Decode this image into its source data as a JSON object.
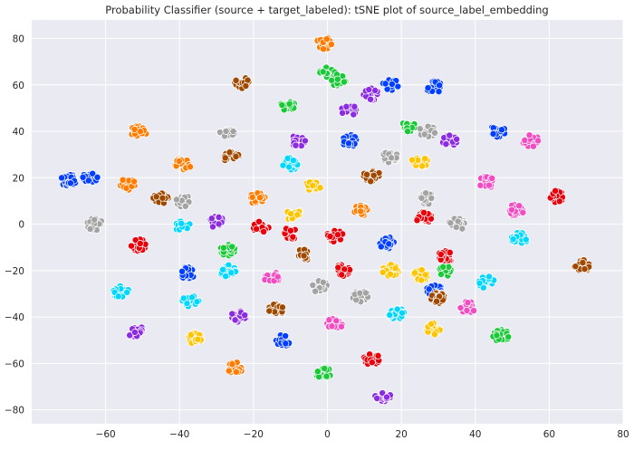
{
  "chart_data": {
    "type": "scatter",
    "title": "Probability Classifier (source + target_labeled): tSNE plot of source_label_embedding",
    "xlabel": "",
    "ylabel": "",
    "xlim": [
      -80,
      80
    ],
    "ylim": [
      -86,
      88
    ],
    "xticks": [
      -60,
      -40,
      -20,
      0,
      20,
      40,
      60,
      80
    ],
    "yticks": [
      -80,
      -60,
      -40,
      -20,
      0,
      20,
      40,
      60,
      80
    ],
    "grid": true,
    "legend": "none",
    "background": "#EAEAF2",
    "gridColor": "#FFFFFF",
    "marker_edge": "#FFFFFF",
    "palette": {
      "blue": "#023EFF",
      "orange": "#FF7C00",
      "green": "#1AC938",
      "red": "#E8000B",
      "purple": "#8B2BE2",
      "brown": "#9F4800",
      "pink": "#F14CC1",
      "gray": "#A3A3A3",
      "yellow": "#FFC400",
      "cyan": "#00D7FF"
    },
    "clusters": [
      {
        "x": -70,
        "y": 19,
        "color": "blue"
      },
      {
        "x": -64,
        "y": 20,
        "color": "blue"
      },
      {
        "x": -63,
        "y": 0,
        "color": "gray"
      },
      {
        "x": -54,
        "y": 17,
        "color": "orange"
      },
      {
        "x": -51,
        "y": 40,
        "color": "orange"
      },
      {
        "x": -51,
        "y": -9,
        "color": "red"
      },
      {
        "x": -56,
        "y": -29,
        "color": "cyan"
      },
      {
        "x": -52,
        "y": -46,
        "color": "purple"
      },
      {
        "x": -45,
        "y": 11,
        "color": "brown"
      },
      {
        "x": -39,
        "y": 26,
        "color": "orange"
      },
      {
        "x": -39,
        "y": 10,
        "color": "gray"
      },
      {
        "x": -39,
        "y": -1,
        "color": "cyan"
      },
      {
        "x": -38,
        "y": -21,
        "color": "blue"
      },
      {
        "x": -37,
        "y": -33,
        "color": "cyan"
      },
      {
        "x": -36,
        "y": -49,
        "color": "yellow"
      },
      {
        "x": -27,
        "y": 40,
        "color": "gray"
      },
      {
        "x": -26,
        "y": 29,
        "color": "brown"
      },
      {
        "x": -23,
        "y": 61,
        "color": "brown"
      },
      {
        "x": -30,
        "y": 1,
        "color": "purple"
      },
      {
        "x": -27,
        "y": -11,
        "color": "green"
      },
      {
        "x": -27,
        "y": -20,
        "color": "cyan"
      },
      {
        "x": -24,
        "y": -40,
        "color": "purple"
      },
      {
        "x": -25,
        "y": -62,
        "color": "orange"
      },
      {
        "x": -19,
        "y": 11,
        "color": "orange"
      },
      {
        "x": -18,
        "y": -1,
        "color": "red"
      },
      {
        "x": -15,
        "y": -23,
        "color": "pink"
      },
      {
        "x": -14,
        "y": -37,
        "color": "brown"
      },
      {
        "x": -12,
        "y": -50,
        "color": "blue"
      },
      {
        "x": -11,
        "y": 51,
        "color": "green"
      },
      {
        "x": -10,
        "y": 26,
        "color": "cyan"
      },
      {
        "x": -9,
        "y": 4,
        "color": "yellow"
      },
      {
        "x": -10,
        "y": -4,
        "color": "red"
      },
      {
        "x": -8,
        "y": 36,
        "color": "purple"
      },
      {
        "x": -6,
        "y": -13,
        "color": "brown"
      },
      {
        "x": -4,
        "y": 16,
        "color": "yellow"
      },
      {
        "x": -2,
        "y": -27,
        "color": "gray"
      },
      {
        "x": -1,
        "y": 78,
        "color": "orange"
      },
      {
        "x": 0,
        "y": 65,
        "color": "green"
      },
      {
        "x": 3,
        "y": 62,
        "color": "green"
      },
      {
        "x": 2,
        "y": -5,
        "color": "red"
      },
      {
        "x": 2,
        "y": -43,
        "color": "pink"
      },
      {
        "x": -1,
        "y": -64,
        "color": "green"
      },
      {
        "x": 4,
        "y": -20,
        "color": "red"
      },
      {
        "x": 6,
        "y": 49,
        "color": "purple"
      },
      {
        "x": 6,
        "y": 36,
        "color": "blue"
      },
      {
        "x": 9,
        "y": 6,
        "color": "orange"
      },
      {
        "x": 9,
        "y": -31,
        "color": "gray"
      },
      {
        "x": 12,
        "y": 56,
        "color": "purple"
      },
      {
        "x": 12,
        "y": 21,
        "color": "brown"
      },
      {
        "x": 12,
        "y": -58,
        "color": "red"
      },
      {
        "x": 16,
        "y": -8,
        "color": "blue"
      },
      {
        "x": 17,
        "y": 60,
        "color": "blue"
      },
      {
        "x": 17,
        "y": 29,
        "color": "gray"
      },
      {
        "x": 17,
        "y": -20,
        "color": "yellow"
      },
      {
        "x": 19,
        "y": -39,
        "color": "cyan"
      },
      {
        "x": 15,
        "y": -74,
        "color": "purple"
      },
      {
        "x": 22,
        "y": 42,
        "color": "green"
      },
      {
        "x": 25,
        "y": 27,
        "color": "yellow"
      },
      {
        "x": 26,
        "y": 3,
        "color": "red"
      },
      {
        "x": 25,
        "y": -22,
        "color": "yellow"
      },
      {
        "x": 27,
        "y": 11,
        "color": "gray"
      },
      {
        "x": 27,
        "y": 40,
        "color": "gray"
      },
      {
        "x": 29,
        "y": 59,
        "color": "blue"
      },
      {
        "x": 32,
        "y": -14,
        "color": "red"
      },
      {
        "x": 32,
        "y": -20,
        "color": "green"
      },
      {
        "x": 29,
        "y": -28,
        "color": "blue"
      },
      {
        "x": 30,
        "y": -32,
        "color": "brown"
      },
      {
        "x": 29,
        "y": -45,
        "color": "yellow"
      },
      {
        "x": 33,
        "y": 36,
        "color": "purple"
      },
      {
        "x": 35,
        "y": 0,
        "color": "gray"
      },
      {
        "x": 38,
        "y": -36,
        "color": "pink"
      },
      {
        "x": 43,
        "y": 18,
        "color": "pink"
      },
      {
        "x": 43,
        "y": -25,
        "color": "cyan"
      },
      {
        "x": 46,
        "y": 40,
        "color": "blue"
      },
      {
        "x": 47,
        "y": -48,
        "color": "green"
      },
      {
        "x": 51,
        "y": 6,
        "color": "pink"
      },
      {
        "x": 52,
        "y": -6,
        "color": "cyan"
      },
      {
        "x": 55,
        "y": 36,
        "color": "pink"
      },
      {
        "x": 62,
        "y": 12,
        "color": "red"
      },
      {
        "x": 69,
        "y": -18,
        "color": "brown"
      }
    ]
  }
}
